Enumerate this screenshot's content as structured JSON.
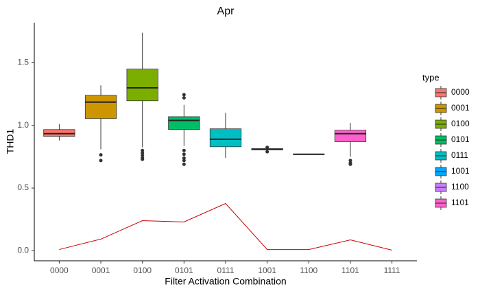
{
  "chart_data": {
    "type": "boxplot",
    "title": "Apr",
    "x_label": "Filter Activation Combination",
    "y_label": "THD1",
    "categories": [
      "0000",
      "0001",
      "0100",
      "0101",
      "0111",
      "1001",
      "1100",
      "1101",
      "1111"
    ],
    "ylim": [
      -0.08,
      1.82
    ],
    "yticks": [
      {
        "value": 0,
        "label": "0.0"
      },
      0.5,
      {
        "value": 1,
        "label": "1.0"
      },
      1.5
    ],
    "grid": false,
    "legend_title": "type",
    "legend_position": "right",
    "boxes": [
      {
        "name": "0000",
        "color": "#F8766D",
        "whisker_low": 0.88,
        "q1": 0.913,
        "median": 0.934,
        "q3": 0.967,
        "whisker_high": 1.01,
        "outliers": []
      },
      {
        "name": "0001",
        "color": "#CD9600",
        "whisker_low": 0.81,
        "q1": 1.055,
        "median": 1.186,
        "q3": 1.24,
        "whisker_high": 1.32,
        "outliers": [
          0.765,
          0.72
        ]
      },
      {
        "name": "0100",
        "color": "#7CAE00",
        "whisker_low": 0.825,
        "q1": 1.197,
        "median": 1.3,
        "q3": 1.45,
        "whisker_high": 1.74,
        "outliers": [
          0.8,
          0.78,
          0.76,
          0.74,
          0.73
        ]
      },
      {
        "name": "0101",
        "color": "#00BE67",
        "whisker_low": 0.836,
        "q1": 0.967,
        "median": 1.04,
        "q3": 1.07,
        "whisker_high": 1.164,
        "outliers": [
          1.245,
          1.22,
          0.8,
          0.77,
          0.74,
          0.72,
          0.69
        ]
      },
      {
        "name": "0111",
        "color": "#00BFC4",
        "whisker_low": 0.74,
        "q1": 0.83,
        "median": 0.89,
        "q3": 0.973,
        "whisker_high": 1.1,
        "outliers": []
      },
      {
        "name": "1001",
        "color": "#00A9FF",
        "whisker_low": 0.8,
        "q1": 0.805,
        "median": 0.81,
        "q3": 0.815,
        "whisker_high": 0.82,
        "outliers": [
          0.825,
          0.79
        ]
      },
      {
        "name": "1100",
        "color": "#C77CFF",
        "whisker_low": 0.77,
        "q1": 0.77,
        "median": 0.77,
        "q3": 0.77,
        "whisker_high": 0.77,
        "outliers": []
      },
      {
        "name": "1101",
        "color": "#FF61CC",
        "whisker_low": 0.75,
        "q1": 0.87,
        "median": 0.934,
        "q3": 0.962,
        "whisker_high": 1.02,
        "outliers": [
          0.72,
          0.7,
          0.69
        ]
      }
    ],
    "line": {
      "color": "#CC0000",
      "values": [
        0.01,
        0.093,
        0.24,
        0.23,
        0.377,
        0.01,
        0.01,
        0.087,
        0.005
      ]
    }
  }
}
